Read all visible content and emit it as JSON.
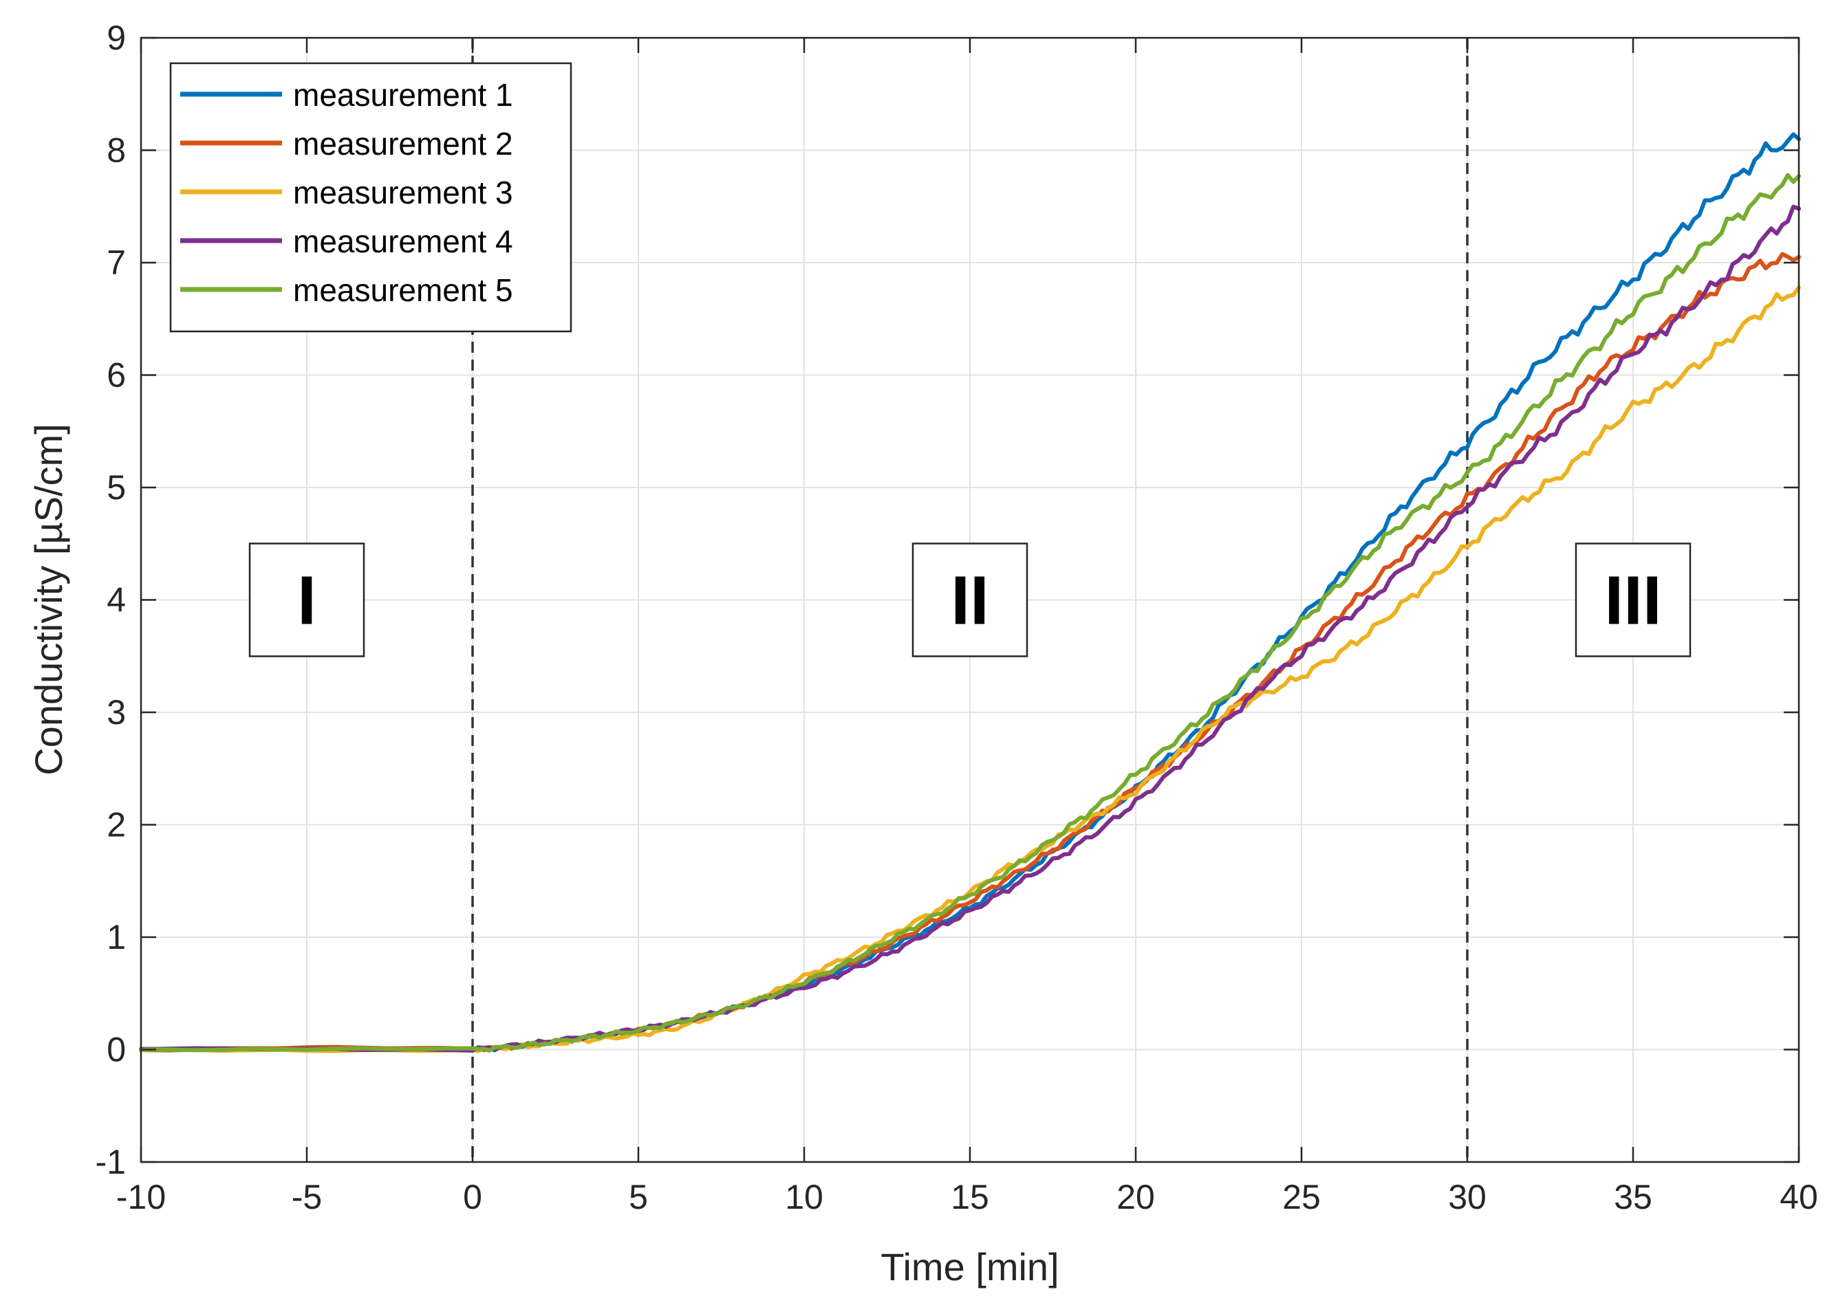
{
  "chart_data": {
    "type": "line",
    "title": "",
    "xlabel": "Time [min]",
    "ylabel": "Conductivity [µS/cm]",
    "xlim": [
      -10,
      40
    ],
    "ylim": [
      -1,
      9
    ],
    "xticks": [
      -10,
      -5,
      0,
      5,
      10,
      15,
      20,
      25,
      30,
      35,
      40
    ],
    "yticks": [
      -1,
      0,
      1,
      2,
      3,
      4,
      5,
      6,
      7,
      8,
      9
    ],
    "grid": true,
    "legend_position": "top-left",
    "vlines": [
      0,
      30
    ],
    "regions": [
      {
        "label": "I",
        "x": -5,
        "y": 4
      },
      {
        "label": "II",
        "x": 15,
        "y": 4
      },
      {
        "label": "III",
        "x": 35,
        "y": 4
      }
    ],
    "series": [
      {
        "name": "measurement 1",
        "color": "#0072BD",
        "x": [
          -10,
          -5,
          0,
          1,
          2,
          3,
          4,
          5,
          6,
          7,
          8,
          9,
          10,
          11,
          12,
          13,
          14,
          15,
          16,
          17,
          18,
          19,
          20,
          21,
          22,
          23,
          24,
          25,
          26,
          27,
          28,
          29,
          30,
          31,
          32,
          33,
          34,
          35,
          36,
          37,
          38,
          39,
          40
        ],
        "y": [
          0,
          0,
          0,
          0.02,
          0.05,
          0.09,
          0.13,
          0.17,
          0.23,
          0.3,
          0.38,
          0.48,
          0.58,
          0.7,
          0.83,
          0.97,
          1.11,
          1.26,
          1.45,
          1.65,
          1.86,
          2.08,
          2.32,
          2.6,
          2.86,
          3.2,
          3.52,
          3.84,
          4.15,
          4.48,
          4.82,
          5.12,
          5.4,
          5.72,
          6.05,
          6.33,
          6.6,
          6.86,
          7.15,
          7.45,
          7.72,
          8.0,
          8.1
        ]
      },
      {
        "name": "measurement 2",
        "color": "#D95319",
        "x": [
          -10,
          -5,
          0,
          1,
          2,
          3,
          4,
          5,
          6,
          7,
          8,
          9,
          10,
          11,
          12,
          13,
          14,
          15,
          16,
          17,
          18,
          19,
          20,
          21,
          22,
          23,
          24,
          25,
          26,
          27,
          28,
          29,
          30,
          31,
          32,
          33,
          34,
          35,
          36,
          37,
          38,
          39,
          40
        ],
        "y": [
          0,
          0.02,
          0,
          0.02,
          0.05,
          0.09,
          0.13,
          0.17,
          0.23,
          0.3,
          0.38,
          0.48,
          0.6,
          0.72,
          0.85,
          1.0,
          1.16,
          1.32,
          1.5,
          1.68,
          1.88,
          2.1,
          2.33,
          2.56,
          2.8,
          3.05,
          3.3,
          3.56,
          3.83,
          4.1,
          4.4,
          4.67,
          4.9,
          5.15,
          5.45,
          5.75,
          6.05,
          6.25,
          6.45,
          6.68,
          6.85,
          7.0,
          7.05
        ]
      },
      {
        "name": "measurement 3",
        "color": "#EDB120",
        "x": [
          -10,
          -5,
          0,
          1,
          2,
          3,
          4,
          5,
          6,
          7,
          8,
          9,
          10,
          11,
          12,
          13,
          14,
          15,
          16,
          17,
          18,
          19,
          20,
          21,
          22,
          23,
          24,
          25,
          26,
          27,
          28,
          29,
          30,
          31,
          32,
          33,
          34,
          35,
          36,
          37,
          38,
          39,
          40
        ],
        "y": [
          0,
          0,
          0,
          0.02,
          0.04,
          0.07,
          0.1,
          0.13,
          0.18,
          0.27,
          0.38,
          0.5,
          0.65,
          0.78,
          0.92,
          1.08,
          1.24,
          1.4,
          1.6,
          1.76,
          1.95,
          2.12,
          2.3,
          2.55,
          2.82,
          3.05,
          3.18,
          3.32,
          3.5,
          3.7,
          3.95,
          4.2,
          4.48,
          4.74,
          4.95,
          5.15,
          5.45,
          5.72,
          5.9,
          6.1,
          6.35,
          6.6,
          6.78
        ]
      },
      {
        "name": "measurement 4",
        "color": "#7E2F8E",
        "x": [
          -10,
          -5,
          0,
          1,
          2,
          3,
          4,
          5,
          6,
          7,
          8,
          9,
          10,
          11,
          12,
          13,
          14,
          15,
          16,
          17,
          18,
          19,
          20,
          21,
          22,
          23,
          24,
          25,
          26,
          27,
          28,
          29,
          30,
          31,
          32,
          33,
          34,
          35,
          36,
          37,
          38,
          39,
          40
        ],
        "y": [
          0,
          0,
          0,
          0.03,
          0.06,
          0.1,
          0.14,
          0.18,
          0.23,
          0.3,
          0.37,
          0.46,
          0.55,
          0.66,
          0.78,
          0.92,
          1.08,
          1.23,
          1.4,
          1.58,
          1.77,
          1.97,
          2.2,
          2.45,
          2.72,
          3.0,
          3.28,
          3.52,
          3.76,
          3.98,
          4.26,
          4.55,
          4.85,
          5.1,
          5.35,
          5.6,
          5.92,
          6.2,
          6.42,
          6.68,
          6.95,
          7.22,
          7.48
        ]
      },
      {
        "name": "measurement 5",
        "color": "#77AC30",
        "x": [
          -10,
          -5,
          0,
          1,
          2,
          3,
          4,
          5,
          6,
          7,
          8,
          9,
          10,
          11,
          12,
          13,
          14,
          15,
          16,
          17,
          18,
          19,
          20,
          21,
          22,
          23,
          24,
          25,
          26,
          27,
          28,
          29,
          30,
          31,
          32,
          33,
          34,
          35,
          36,
          37,
          38,
          39,
          40
        ],
        "y": [
          0,
          0,
          0,
          0.02,
          0.05,
          0.09,
          0.13,
          0.17,
          0.23,
          0.3,
          0.38,
          0.48,
          0.6,
          0.73,
          0.88,
          1.04,
          1.2,
          1.38,
          1.56,
          1.76,
          1.98,
          2.2,
          2.45,
          2.7,
          2.95,
          3.22,
          3.5,
          3.8,
          4.1,
          4.4,
          4.68,
          4.9,
          5.12,
          5.38,
          5.7,
          6.0,
          6.28,
          6.58,
          6.83,
          7.1,
          7.38,
          7.6,
          7.77
        ]
      }
    ]
  }
}
